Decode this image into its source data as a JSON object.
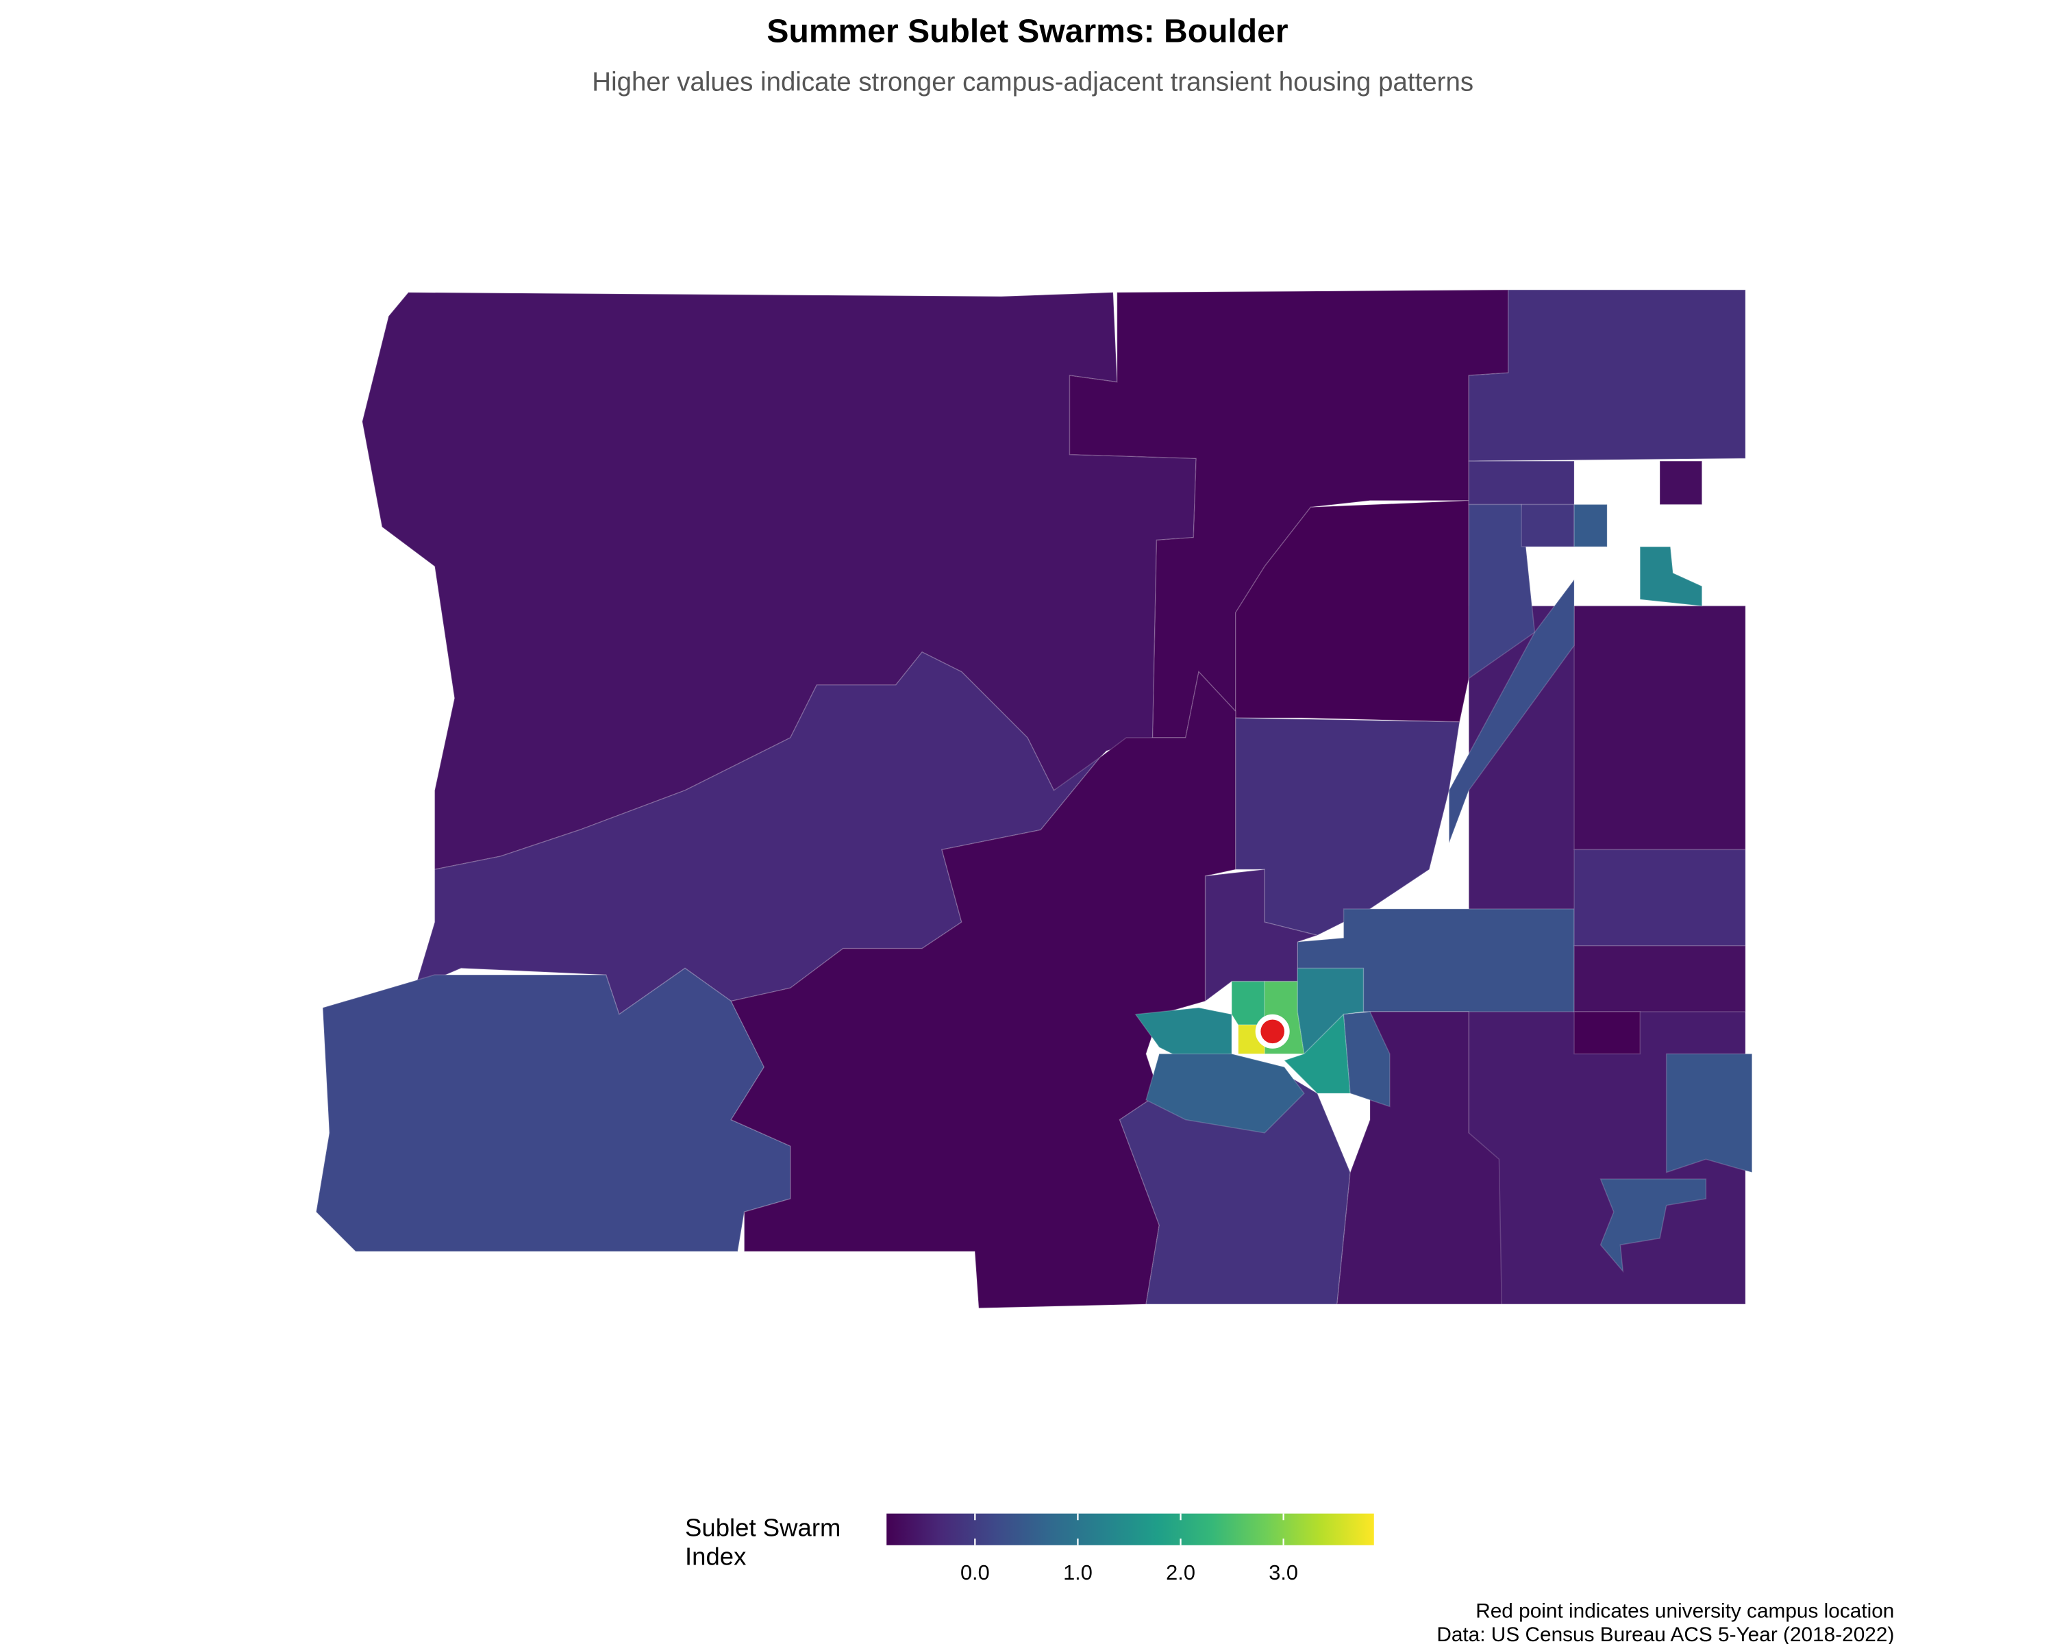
{
  "title": "Summer Sublet Swarms: Boulder",
  "subtitle": "Higher values indicate stronger campus-adjacent transient housing patterns",
  "legend": {
    "title": "Sublet Swarm Index",
    "colormap": "viridis",
    "limits": [
      -0.86,
      3.88
    ],
    "ticks": [
      {
        "value": 0,
        "label": "0.0"
      },
      {
        "value": 1,
        "label": "1.0"
      },
      {
        "value": 2,
        "label": "2.0"
      },
      {
        "value": 3,
        "label": "3.0"
      }
    ]
  },
  "map": {
    "values": [
      -0.6,
      -0.8,
      -0.85,
      -0.2,
      -0.3,
      0.2,
      -0.8,
      -0.2,
      -0.15,
      0.35,
      1.3,
      0.6,
      3.7,
      2.6,
      2.2,
      1.7,
      0.4,
      1.2,
      -0.6,
      -0.5,
      -0.7,
      -0.25,
      -0.65,
      0.4,
      0.4,
      0.3,
      -0.2,
      -0.1,
      0.5,
      1.3,
      -0.7,
      -0.4,
      -0.85,
      0.1
    ]
  },
  "notes": [
    "Red point indicates university campus location",
    "Data: US Census Bureau ACS 5-Year (2018-2022)"
  ]
}
